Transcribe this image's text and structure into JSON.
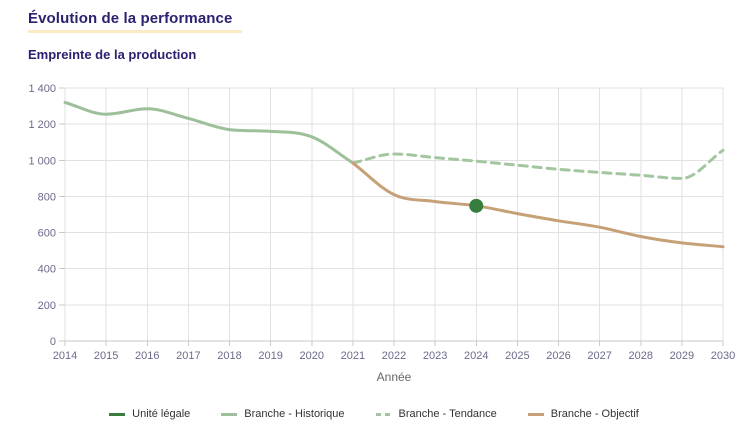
{
  "page": {
    "title": "Évolution de la performance",
    "subtitle": "Empreinte de la production"
  },
  "colors": {
    "title_text": "#2a2170",
    "title_underline": "#fbeac5",
    "tick_label": "#6b6b8d",
    "axis_title": "#66666c",
    "legend_text": "#333333",
    "gridline": "#e2e2e2",
    "axis_line": "#c9c9c9"
  },
  "chart_data": {
    "type": "line",
    "title": "Empreinte de la production",
    "xlabel": "Année",
    "ylabel": "",
    "xlim": [
      2014,
      2030
    ],
    "ylim": [
      0,
      1400
    ],
    "grid": true,
    "legend_position": "bottom",
    "x_ticks": [
      {
        "value": 2014,
        "label": "2014"
      },
      {
        "value": 2015,
        "label": "2015"
      },
      {
        "value": 2016,
        "label": "2016"
      },
      {
        "value": 2017,
        "label": "2017"
      },
      {
        "value": 2018,
        "label": "2018"
      },
      {
        "value": 2019,
        "label": "2019"
      },
      {
        "value": 2020,
        "label": "2020"
      },
      {
        "value": 2021,
        "label": "2021"
      },
      {
        "value": 2022,
        "label": "2022"
      },
      {
        "value": 2023,
        "label": "2023"
      },
      {
        "value": 2024,
        "label": "2024"
      },
      {
        "value": 2025,
        "label": "2025"
      },
      {
        "value": 2026,
        "label": "2026"
      },
      {
        "value": 2027,
        "label": "2027"
      },
      {
        "value": 2028,
        "label": "2028"
      },
      {
        "value": 2029,
        "label": "2029"
      },
      {
        "value": 2030,
        "label": "2030"
      }
    ],
    "y_ticks": [
      {
        "value": 0,
        "label": "0"
      },
      {
        "value": 200,
        "label": "200"
      },
      {
        "value": 400,
        "label": "400"
      },
      {
        "value": 600,
        "label": "600"
      },
      {
        "value": 800,
        "label": "800"
      },
      {
        "value": 1000,
        "label": "1 000"
      },
      {
        "value": 1200,
        "label": "1 200"
      },
      {
        "value": 1400,
        "label": "1 400"
      }
    ],
    "series": [
      {
        "name": "Unité légale",
        "type": "scatter",
        "color": "#377d3e",
        "points": [
          {
            "x": 2024,
            "y": 748
          }
        ]
      },
      {
        "name": "Branche - Historique",
        "type": "line",
        "style": "solid",
        "color": "#9dbf9a",
        "x": [
          2014,
          2015,
          2016,
          2017,
          2018,
          2019,
          2020,
          2021
        ],
        "values": [
          1320,
          1255,
          1285,
          1232,
          1170,
          1160,
          1130,
          985
        ]
      },
      {
        "name": "Branche - Tendance",
        "type": "line",
        "style": "dashed",
        "color": "#a3c6a0",
        "x": [
          2021,
          2022,
          2023,
          2024,
          2025,
          2026,
          2027,
          2028,
          2029,
          2030
        ],
        "values": [
          985,
          1035,
          1015,
          995,
          973,
          950,
          933,
          917,
          900,
          1055
        ]
      },
      {
        "name": "Branche - Objectif",
        "type": "line",
        "style": "solid",
        "color": "#c6a076",
        "x": [
          2021,
          2022,
          2023,
          2024,
          2025,
          2026,
          2027,
          2028,
          2029,
          2030
        ],
        "values": [
          985,
          810,
          772,
          748,
          705,
          665,
          630,
          578,
          543,
          522
        ]
      }
    ]
  }
}
